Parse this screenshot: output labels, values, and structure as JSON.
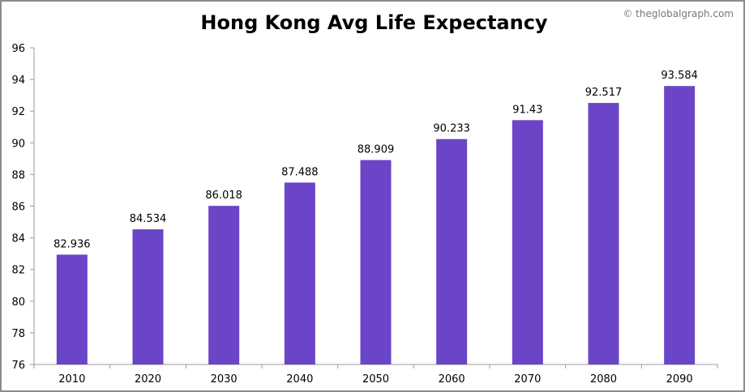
{
  "chart_data": {
    "type": "bar",
    "title": "Hong Kong Avg Life Expectancy",
    "categories": [
      "2010",
      "2020",
      "2030",
      "2040",
      "2050",
      "2060",
      "2070",
      "2080",
      "2090"
    ],
    "values": [
      82.936,
      84.534,
      86.018,
      87.488,
      88.909,
      90.233,
      91.43,
      92.517,
      93.584
    ],
    "value_labels": [
      "82.936",
      "84.534",
      "86.018",
      "87.488",
      "88.909",
      "90.233",
      "91.43",
      "92.517",
      "93.584"
    ],
    "y_ticks": [
      "76",
      "78",
      "80",
      "82",
      "84",
      "86",
      "88",
      "90",
      "92",
      "94",
      "96"
    ],
    "ylim": [
      76,
      96
    ],
    "xlabel": "",
    "ylabel": "",
    "grid": false,
    "legend": "none",
    "bar_color": "#6a45c7",
    "watermark": "© theglobalgraph.com"
  }
}
